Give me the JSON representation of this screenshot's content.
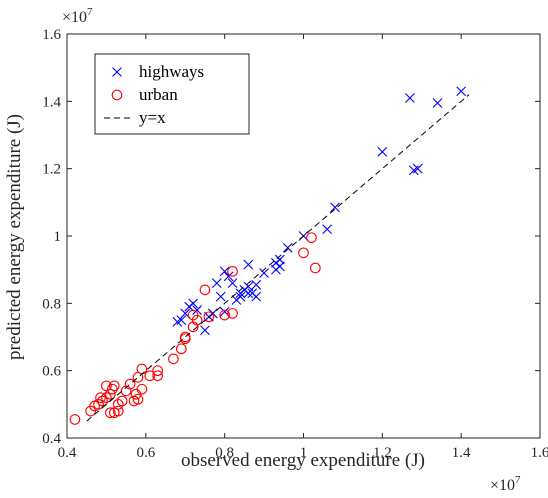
{
  "chart_data": {
    "type": "scatter",
    "xlabel": "observed energy expenditure (J)",
    "ylabel": "predicted energy expenditure (J)",
    "x_exponent_base": "×10",
    "x_exponent_power": "7",
    "y_exponent_base": "×10",
    "y_exponent_power": "7",
    "xlim": [
      0.4,
      1.6
    ],
    "ylim": [
      0.4,
      1.6
    ],
    "x_ticks": [
      "0.4",
      "0.6",
      "0.8",
      "1",
      "1.2",
      "1.4",
      "1.6"
    ],
    "y_ticks": [
      "0.4",
      "0.6",
      "0.8",
      "1",
      "1.2",
      "1.4",
      "1.6"
    ],
    "legend_position": "top-left",
    "grid": false,
    "series": [
      {
        "name": "highways",
        "marker": "x",
        "color": "#0000ff",
        "points": [
          [
            0.68,
            0.745
          ],
          [
            0.69,
            0.75
          ],
          [
            0.7,
            0.77
          ],
          [
            0.71,
            0.79
          ],
          [
            0.72,
            0.8
          ],
          [
            0.73,
            0.78
          ],
          [
            0.75,
            0.72
          ],
          [
            0.76,
            0.76
          ],
          [
            0.77,
            0.77
          ],
          [
            0.78,
            0.86
          ],
          [
            0.79,
            0.82
          ],
          [
            0.8,
            0.775
          ],
          [
            0.8,
            0.895
          ],
          [
            0.81,
            0.88
          ],
          [
            0.82,
            0.86
          ],
          [
            0.83,
            0.81
          ],
          [
            0.84,
            0.82
          ],
          [
            0.84,
            0.83
          ],
          [
            0.85,
            0.84
          ],
          [
            0.86,
            0.83
          ],
          [
            0.86,
            0.85
          ],
          [
            0.86,
            0.915
          ],
          [
            0.87,
            0.83
          ],
          [
            0.88,
            0.855
          ],
          [
            0.88,
            0.82
          ],
          [
            0.9,
            0.89
          ],
          [
            0.93,
            0.9
          ],
          [
            0.93,
            0.92
          ],
          [
            0.94,
            0.93
          ],
          [
            0.94,
            0.91
          ],
          [
            0.96,
            0.965
          ],
          [
            1.0,
            1.0
          ],
          [
            1.06,
            1.02
          ],
          [
            1.08,
            1.085
          ],
          [
            1.2,
            1.25
          ],
          [
            1.27,
            1.41
          ],
          [
            1.28,
            1.195
          ],
          [
            1.29,
            1.2
          ],
          [
            1.34,
            1.395
          ],
          [
            1.4,
            1.43
          ]
        ]
      },
      {
        "name": "urban",
        "marker": "o",
        "color": "#ff0000",
        "points": [
          [
            0.42,
            0.455
          ],
          [
            0.46,
            0.48
          ],
          [
            0.47,
            0.495
          ],
          [
            0.48,
            0.5
          ],
          [
            0.485,
            0.52
          ],
          [
            0.49,
            0.51
          ],
          [
            0.5,
            0.52
          ],
          [
            0.5,
            0.555
          ],
          [
            0.51,
            0.475
          ],
          [
            0.51,
            0.53
          ],
          [
            0.515,
            0.545
          ],
          [
            0.52,
            0.555
          ],
          [
            0.52,
            0.475
          ],
          [
            0.53,
            0.48
          ],
          [
            0.53,
            0.5
          ],
          [
            0.54,
            0.51
          ],
          [
            0.55,
            0.54
          ],
          [
            0.56,
            0.56
          ],
          [
            0.57,
            0.51
          ],
          [
            0.575,
            0.53
          ],
          [
            0.58,
            0.515
          ],
          [
            0.58,
            0.58
          ],
          [
            0.59,
            0.605
          ],
          [
            0.59,
            0.545
          ],
          [
            0.61,
            0.585
          ],
          [
            0.63,
            0.585
          ],
          [
            0.63,
            0.6
          ],
          [
            0.67,
            0.635
          ],
          [
            0.69,
            0.665
          ],
          [
            0.7,
            0.695
          ],
          [
            0.7,
            0.7
          ],
          [
            0.72,
            0.73
          ],
          [
            0.72,
            0.765
          ],
          [
            0.73,
            0.75
          ],
          [
            0.75,
            0.84
          ],
          [
            0.76,
            0.76
          ],
          [
            0.8,
            0.765
          ],
          [
            0.82,
            0.77
          ],
          [
            0.82,
            0.895
          ],
          [
            1.0,
            0.95
          ],
          [
            1.02,
            0.995
          ],
          [
            1.03,
            0.905
          ]
        ]
      },
      {
        "name": "y=x",
        "marker": "dashed-line",
        "color": "#000000",
        "points": [
          [
            0.45,
            0.45
          ],
          [
            1.42,
            1.42
          ]
        ]
      }
    ]
  }
}
